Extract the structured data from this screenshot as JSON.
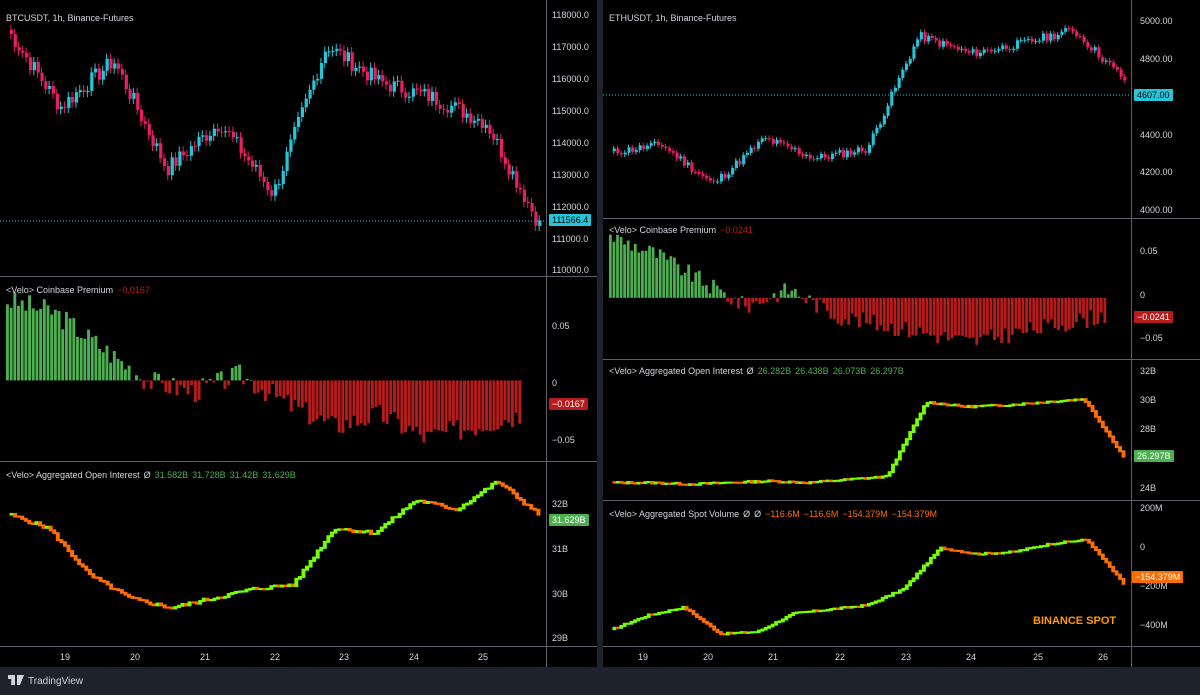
{
  "left": {
    "title": "BTCUSDT, 1h, Binance-Futures",
    "price_axis": [
      "118000.0",
      "117000.0",
      "116000.0",
      "115000.0",
      "114000.0",
      "113000.0",
      "112000.0",
      "111000.0",
      "110000.0"
    ],
    "last_price": "111566.4",
    "premium": {
      "title": "<Velo> Coinbase Premium",
      "value": "−0.0167",
      "axis": [
        "0.05",
        "0",
        "−0.05"
      ],
      "badge": "−0.0167"
    },
    "oi": {
      "title": "<Velo> Aggregated Open Interest",
      "symbol": "Ø",
      "values": [
        "31.582B",
        "31.728B",
        "31.42B",
        "31.629B"
      ],
      "axis": [
        "32B",
        "31B",
        "30B",
        "29B"
      ],
      "badge": "31.629B"
    },
    "time_axis": [
      "19",
      "20",
      "21",
      "22",
      "23",
      "24",
      "25"
    ]
  },
  "right": {
    "title": "ETHUSDT, 1h, Binance-Futures",
    "price_axis": [
      "5000.00",
      "4800.00",
      "4607.00",
      "4400.00",
      "4200.00",
      "4000.00"
    ],
    "last_price": "4607.00",
    "premium": {
      "title": "<Velo> Coinbase Premium",
      "value": "−0.0241",
      "axis": [
        "0.05",
        "0",
        "−0.05"
      ],
      "badge": "−0.0241"
    },
    "oi": {
      "title": "<Velo> Aggregated Open Interest",
      "symbol": "Ø",
      "values": [
        "26.282B",
        "26.438B",
        "26.073B",
        "26.297B"
      ],
      "axis": [
        "32B",
        "30B",
        "28B",
        "24B"
      ],
      "badge": "26.297B"
    },
    "spot": {
      "title": "<Velo> Aggregated Spot Volume",
      "symbol1": "Ø",
      "symbol2": "Ø",
      "values": [
        "−116.6M",
        "−116.6M",
        "−154.379M",
        "−154.379M"
      ],
      "axis": [
        "200M",
        "0",
        "−200M",
        "−400M"
      ],
      "badge": "−154.379M",
      "watermark": "BINANCE SPOT"
    },
    "time_axis": [
      "19",
      "20",
      "21",
      "22",
      "23",
      "24",
      "25",
      "26"
    ]
  },
  "footer": {
    "brand": "TradingView"
  },
  "colors": {
    "up": "#26c6da",
    "down": "#e91e63",
    "green": "#4caf50",
    "red": "#b71c1c",
    "orange": "#ff6d00",
    "lime": "#76ff03"
  },
  "chart_data": [
    {
      "type": "line",
      "title": "BTCUSDT, 1h, Binance-Futures",
      "x": [
        "19",
        "20",
        "21",
        "22",
        "23",
        "24",
        "25"
      ],
      "series": [],
      "values_approx": [
        115500,
        113000,
        114500,
        112000,
        117000,
        115500,
        111566
      ],
      "ylim": [
        110000,
        118000
      ]
    },
    {
      "type": "bar",
      "title": "<Velo> Coinbase Premium",
      "values_approx": [
        0.05,
        0.04,
        -0.01,
        -0.03,
        -0.04,
        -0.03,
        -0.0167
      ],
      "ylim": [
        -0.06,
        0.08
      ]
    },
    {
      "type": "line",
      "title": "<Velo> Aggregated Open Interest",
      "values_approx": [
        31.6,
        30.3,
        29.6,
        30.0,
        31.3,
        31.8,
        31.629
      ],
      "ylim": [
        29,
        32.5
      ]
    },
    {
      "type": "line",
      "title": "ETHUSDT, 1h, Binance-Futures",
      "x": [
        "19",
        "20",
        "21",
        "22",
        "23",
        "24",
        "25",
        "26"
      ],
      "values_approx": [
        4290,
        4120,
        4330,
        4260,
        4850,
        4780,
        4900,
        4607
      ],
      "ylim": [
        4000,
        5000
      ]
    },
    {
      "type": "bar",
      "title": "<Velo> Coinbase Premium",
      "values_approx": [
        0.06,
        0.03,
        0.0,
        -0.02,
        -0.03,
        -0.04,
        -0.0241
      ],
      "ylim": [
        -0.06,
        0.08
      ]
    },
    {
      "type": "line",
      "title": "<Velo> Aggregated Open Interest",
      "values_approx": [
        24.6,
        24.6,
        24.7,
        25.0,
        29.8,
        29.5,
        30.0,
        26.297
      ],
      "ylim": [
        24,
        32
      ]
    },
    {
      "type": "line",
      "title": "<Velo> Aggregated Spot Volume",
      "values_approx": [
        -380,
        -300,
        -400,
        -280,
        -230,
        60,
        -30,
        -154.379
      ],
      "ylim": [
        -420,
        210
      ]
    }
  ]
}
